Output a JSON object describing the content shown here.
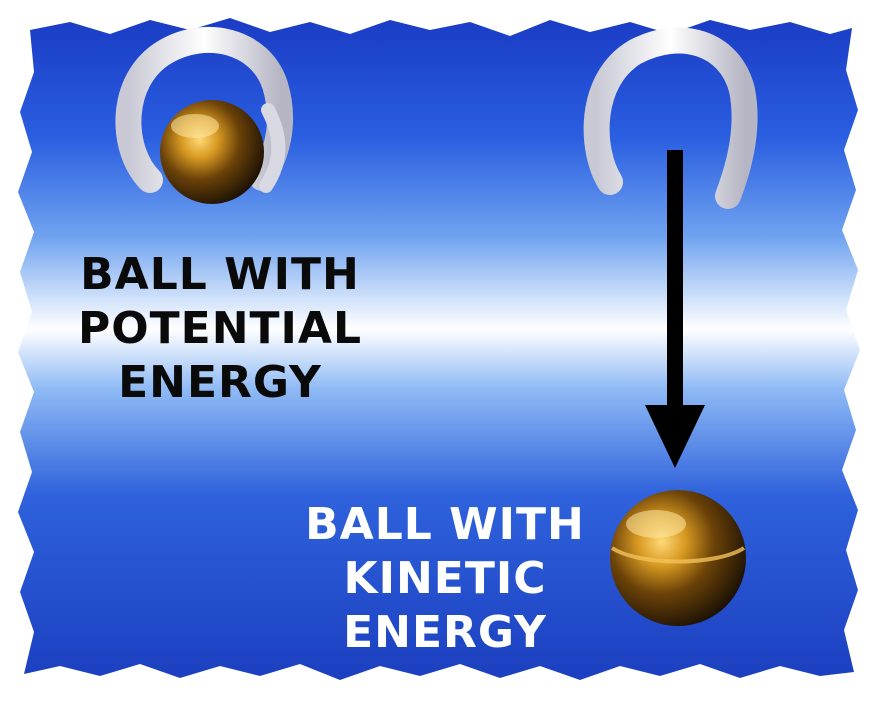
{
  "labels": {
    "potential": [
      "BALL WITH",
      "POTENTIAL",
      "ENERGY"
    ],
    "kinetic": [
      "BALL WITH",
      "KINETIC",
      "ENERGY"
    ]
  },
  "colors": {
    "background_dark": "#1a3fbf",
    "background_light": "#ffffff",
    "hook": "#e8e8ee",
    "ball_gold": "#c8901c",
    "ball_dark": "#1a1208",
    "arrow": "#000000"
  },
  "icons": [
    "hook-icon",
    "ball-icon",
    "down-arrow-icon"
  ]
}
